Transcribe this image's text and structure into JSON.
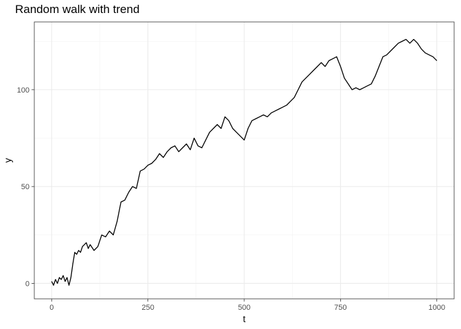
{
  "chart_data": {
    "type": "line",
    "title": "Random walk with trend",
    "xlabel": "t",
    "ylabel": "y",
    "xlim": [
      -45,
      1045
    ],
    "ylim": [
      -8,
      135
    ],
    "x_ticks": [
      0,
      250,
      500,
      750,
      1000
    ],
    "y_ticks": [
      0,
      50,
      100
    ],
    "grid": true,
    "line_color": "#000000",
    "series": [
      {
        "x": [
          0,
          5,
          10,
          15,
          20,
          25,
          30,
          35,
          40,
          45,
          50,
          55,
          60,
          65,
          70,
          75,
          80,
          85,
          90,
          95,
          100,
          110,
          120,
          130,
          140,
          150,
          160,
          170,
          180,
          190,
          200,
          210,
          220,
          230,
          240,
          250,
          260,
          270,
          280,
          290,
          300,
          310,
          320,
          330,
          340,
          350,
          360,
          370,
          380,
          390,
          400,
          410,
          420,
          430,
          440,
          450,
          460,
          470,
          480,
          490,
          500,
          510,
          520,
          530,
          540,
          550,
          560,
          570,
          580,
          590,
          600,
          610,
          620,
          630,
          640,
          650,
          660,
          670,
          680,
          690,
          700,
          710,
          720,
          730,
          740,
          750,
          760,
          770,
          780,
          790,
          800,
          810,
          820,
          830,
          840,
          850,
          860,
          870,
          880,
          890,
          900,
          910,
          920,
          930,
          940,
          950,
          960,
          970,
          980,
          990,
          1000
        ],
        "y": [
          1,
          -1,
          2,
          0,
          3,
          2,
          4,
          1,
          3,
          -1,
          3,
          10,
          16,
          15,
          17,
          16,
          19,
          20,
          21,
          18,
          20,
          17,
          19,
          25,
          24,
          27,
          25,
          32,
          42,
          43,
          47,
          50,
          49,
          58,
          59,
          61,
          62,
          64,
          67,
          65,
          68,
          70,
          71,
          68,
          70,
          72,
          69,
          75,
          71,
          70,
          74,
          78,
          80,
          82,
          80,
          86,
          84,
          80,
          78,
          76,
          74,
          80,
          84,
          85,
          86,
          87,
          86,
          88,
          89,
          90,
          91,
          92,
          94,
          96,
          100,
          104,
          106,
          108,
          110,
          112,
          114,
          112,
          115,
          116,
          117,
          112,
          106,
          103,
          100,
          101,
          100,
          101,
          102,
          103,
          107,
          112,
          117,
          118,
          120,
          122,
          124,
          125,
          126,
          124,
          126,
          124,
          121,
          119,
          118,
          117,
          115
        ]
      }
    ]
  }
}
